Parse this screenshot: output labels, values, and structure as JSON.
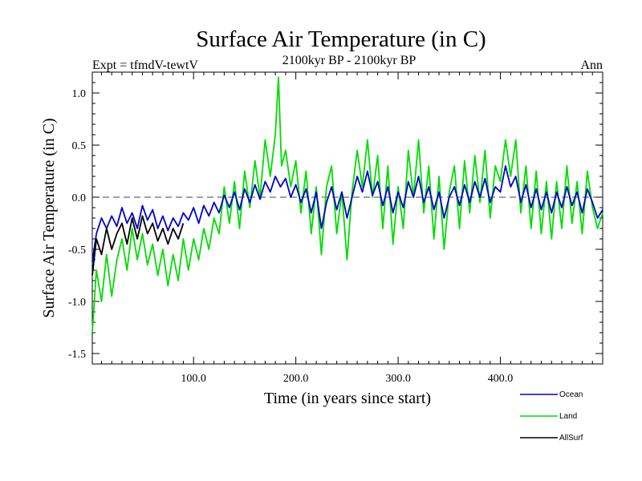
{
  "chart_data": {
    "type": "line",
    "title": "Surface Air Temperature (in C)",
    "subtitle": "2100kyr BP - 2100kyr BP",
    "experiment_label": "Expt = tfmdV-tewtV",
    "period_label": "Ann",
    "xlabel": "Time (in years since start)",
    "ylabel": "Surface Air Temperature (in C)",
    "xlim": [
      1,
      500
    ],
    "ylim": [
      -1.6,
      1.2
    ],
    "x_ticks": [
      100,
      200,
      300,
      400
    ],
    "x_tick_labels": [
      "100.0",
      "200.0",
      "300.0",
      "400.0"
    ],
    "y_ticks": [
      -1.5,
      -1.0,
      -0.5,
      0.0,
      0.5,
      1.0
    ],
    "y_tick_labels": [
      "-1.5",
      "-1.0",
      "-0.5",
      "0.0",
      "0.5",
      "1.0"
    ],
    "reference_line": {
      "y": 0.0,
      "style": "dashed"
    },
    "legend_position": "bottom-right",
    "series": [
      {
        "name": "Ocean",
        "color": "#0000cc",
        "points": [
          [
            1,
            -0.62
          ],
          [
            5,
            -0.35
          ],
          [
            10,
            -0.2
          ],
          [
            15,
            -0.3
          ],
          [
            20,
            -0.18
          ],
          [
            25,
            -0.28
          ],
          [
            30,
            -0.1
          ],
          [
            35,
            -0.25
          ],
          [
            40,
            -0.15
          ],
          [
            45,
            -0.3
          ],
          [
            50,
            -0.08
          ],
          [
            55,
            -0.22
          ],
          [
            60,
            -0.12
          ],
          [
            65,
            -0.3
          ],
          [
            70,
            -0.18
          ],
          [
            75,
            -0.32
          ],
          [
            80,
            -0.2
          ],
          [
            85,
            -0.28
          ],
          [
            90,
            -0.15
          ],
          [
            95,
            -0.22
          ],
          [
            100,
            -0.1
          ],
          [
            105,
            -0.25
          ],
          [
            110,
            -0.08
          ],
          [
            115,
            -0.18
          ],
          [
            120,
            -0.05
          ],
          [
            125,
            -0.15
          ],
          [
            130,
            0.02
          ],
          [
            135,
            -0.1
          ],
          [
            140,
            0.05
          ],
          [
            145,
            -0.12
          ],
          [
            150,
            0.08
          ],
          [
            155,
            -0.05
          ],
          [
            160,
            0.12
          ],
          [
            165,
            -0.02
          ],
          [
            170,
            0.15
          ],
          [
            175,
            0.05
          ],
          [
            180,
            0.2
          ],
          [
            185,
            0.1
          ],
          [
            190,
            0.18
          ],
          [
            195,
            0.0
          ],
          [
            200,
            0.12
          ],
          [
            205,
            -0.05
          ],
          [
            210,
            0.08
          ],
          [
            215,
            -0.15
          ],
          [
            220,
            0.05
          ],
          [
            225,
            -0.3
          ],
          [
            230,
            -0.05
          ],
          [
            235,
            0.1
          ],
          [
            240,
            -0.12
          ],
          [
            245,
            0.05
          ],
          [
            250,
            -0.2
          ],
          [
            255,
            0.0
          ],
          [
            260,
            0.2
          ],
          [
            265,
            0.05
          ],
          [
            270,
            0.25
          ],
          [
            275,
            0.02
          ],
          [
            280,
            0.15
          ],
          [
            285,
            -0.08
          ],
          [
            290,
            0.1
          ],
          [
            295,
            -0.15
          ],
          [
            300,
            0.05
          ],
          [
            305,
            -0.1
          ],
          [
            310,
            0.15
          ],
          [
            315,
            0.0
          ],
          [
            320,
            0.2
          ],
          [
            325,
            -0.05
          ],
          [
            330,
            0.1
          ],
          [
            335,
            -0.12
          ],
          [
            340,
            0.05
          ],
          [
            345,
            -0.2
          ],
          [
            350,
            0.0
          ],
          [
            355,
            0.1
          ],
          [
            360,
            -0.08
          ],
          [
            365,
            0.12
          ],
          [
            370,
            -0.05
          ],
          [
            375,
            0.15
          ],
          [
            380,
            0.0
          ],
          [
            385,
            0.18
          ],
          [
            390,
            -0.05
          ],
          [
            395,
            0.1
          ],
          [
            400,
            0.05
          ],
          [
            405,
            0.3
          ],
          [
            410,
            0.1
          ],
          [
            415,
            0.2
          ],
          [
            420,
            -0.05
          ],
          [
            425,
            0.12
          ],
          [
            430,
            -0.1
          ],
          [
            435,
            0.08
          ],
          [
            440,
            -0.12
          ],
          [
            445,
            0.05
          ],
          [
            450,
            -0.15
          ],
          [
            455,
            0.05
          ],
          [
            460,
            -0.1
          ],
          [
            465,
            0.1
          ],
          [
            470,
            -0.08
          ],
          [
            475,
            0.05
          ],
          [
            480,
            -0.15
          ],
          [
            485,
            0.08
          ],
          [
            490,
            -0.05
          ],
          [
            495,
            -0.2
          ],
          [
            500,
            -0.12
          ]
        ]
      },
      {
        "name": "Land",
        "color": "#00dd00",
        "points": [
          [
            1,
            -1.3
          ],
          [
            5,
            -0.7
          ],
          [
            10,
            -1.0
          ],
          [
            15,
            -0.55
          ],
          [
            20,
            -0.95
          ],
          [
            25,
            -0.6
          ],
          [
            30,
            -0.4
          ],
          [
            35,
            -0.7
          ],
          [
            40,
            -0.3
          ],
          [
            45,
            -0.6
          ],
          [
            50,
            -0.35
          ],
          [
            55,
            -0.65
          ],
          [
            60,
            -0.45
          ],
          [
            65,
            -0.75
          ],
          [
            70,
            -0.5
          ],
          [
            75,
            -0.85
          ],
          [
            80,
            -0.55
          ],
          [
            85,
            -0.8
          ],
          [
            90,
            -0.4
          ],
          [
            95,
            -0.7
          ],
          [
            100,
            -0.4
          ],
          [
            105,
            -0.6
          ],
          [
            110,
            -0.3
          ],
          [
            115,
            -0.5
          ],
          [
            120,
            -0.2
          ],
          [
            125,
            -0.35
          ],
          [
            130,
            0.1
          ],
          [
            135,
            -0.25
          ],
          [
            140,
            0.15
          ],
          [
            145,
            -0.3
          ],
          [
            150,
            0.25
          ],
          [
            155,
            -0.1
          ],
          [
            160,
            0.35
          ],
          [
            165,
            0.0
          ],
          [
            170,
            0.55
          ],
          [
            175,
            0.2
          ],
          [
            180,
            0.6
          ],
          [
            183,
            1.15
          ],
          [
            186,
            0.3
          ],
          [
            190,
            0.45
          ],
          [
            195,
            0.1
          ],
          [
            200,
            0.35
          ],
          [
            205,
            -0.15
          ],
          [
            210,
            0.25
          ],
          [
            215,
            -0.35
          ],
          [
            220,
            0.1
          ],
          [
            225,
            -0.55
          ],
          [
            230,
            0.1
          ],
          [
            235,
            0.3
          ],
          [
            240,
            -0.35
          ],
          [
            245,
            0.05
          ],
          [
            250,
            -0.6
          ],
          [
            255,
            0.05
          ],
          [
            260,
            0.45
          ],
          [
            265,
            0.1
          ],
          [
            270,
            0.55
          ],
          [
            275,
            0.0
          ],
          [
            280,
            0.4
          ],
          [
            285,
            -0.3
          ],
          [
            290,
            0.3
          ],
          [
            295,
            -0.45
          ],
          [
            300,
            0.1
          ],
          [
            305,
            -0.3
          ],
          [
            310,
            0.45
          ],
          [
            315,
            0.0
          ],
          [
            320,
            0.55
          ],
          [
            325,
            -0.15
          ],
          [
            330,
            0.3
          ],
          [
            335,
            -0.4
          ],
          [
            340,
            0.2
          ],
          [
            345,
            -0.5
          ],
          [
            350,
            0.05
          ],
          [
            355,
            0.3
          ],
          [
            360,
            -0.3
          ],
          [
            365,
            0.35
          ],
          [
            370,
            -0.15
          ],
          [
            375,
            0.4
          ],
          [
            380,
            -0.05
          ],
          [
            385,
            0.45
          ],
          [
            390,
            -0.2
          ],
          [
            395,
            0.3
          ],
          [
            400,
            0.15
          ],
          [
            405,
            0.55
          ],
          [
            410,
            0.2
          ],
          [
            415,
            0.55
          ],
          [
            420,
            -0.15
          ],
          [
            425,
            0.3
          ],
          [
            430,
            -0.3
          ],
          [
            435,
            0.25
          ],
          [
            440,
            -0.35
          ],
          [
            445,
            0.15
          ],
          [
            450,
            -0.4
          ],
          [
            455,
            0.15
          ],
          [
            460,
            -0.3
          ],
          [
            465,
            0.3
          ],
          [
            470,
            -0.25
          ],
          [
            475,
            0.15
          ],
          [
            480,
            -0.35
          ],
          [
            485,
            0.25
          ],
          [
            490,
            -0.1
          ],
          [
            495,
            -0.3
          ],
          [
            500,
            -0.15
          ]
        ]
      },
      {
        "name": "AllSurf",
        "color": "#000000",
        "points": [
          [
            1,
            -0.75
          ],
          [
            5,
            -0.4
          ],
          [
            10,
            -0.55
          ],
          [
            15,
            -0.3
          ],
          [
            20,
            -0.5
          ],
          [
            25,
            -0.35
          ],
          [
            30,
            -0.25
          ],
          [
            35,
            -0.45
          ],
          [
            40,
            -0.2
          ],
          [
            45,
            -0.4
          ],
          [
            50,
            -0.18
          ],
          [
            55,
            -0.35
          ],
          [
            60,
            -0.25
          ],
          [
            65,
            -0.42
          ],
          [
            70,
            -0.3
          ],
          [
            75,
            -0.45
          ],
          [
            80,
            -0.3
          ],
          [
            85,
            -0.4
          ],
          [
            90,
            -0.25
          ]
        ]
      }
    ]
  },
  "legend": {
    "items": [
      {
        "label": "Ocean",
        "color": "#0000cc"
      },
      {
        "label": "Land",
        "color": "#00dd00"
      },
      {
        "label": "AllSurf",
        "color": "#000000"
      }
    ]
  }
}
